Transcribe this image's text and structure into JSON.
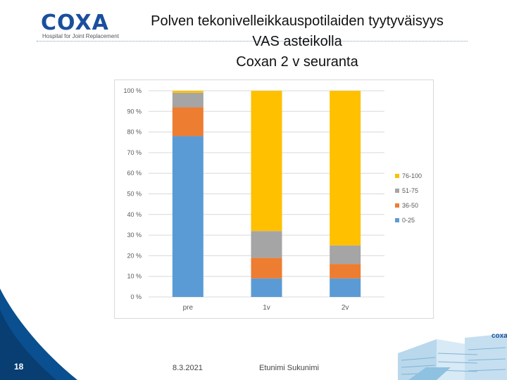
{
  "header": {
    "logo_text": "COXA",
    "logo_tagline": "Hospital for Joint Replacement",
    "title_lines": [
      "Polven tekonivelleikkauspotilaiden tyytyväisyys",
      "VAS asteikolla",
      "Coxan 2 v seuranta"
    ]
  },
  "footer": {
    "slide_number": "18",
    "date": "8.3.2021",
    "author": "Etunimi Sukunimi",
    "building_sign": "coxa"
  },
  "colors": {
    "brand_blue": "#1a4f9c",
    "brand_accent": "#29a8e0",
    "corner_blue": "#0a4f8f"
  },
  "chart_data": {
    "type": "bar",
    "stacked": true,
    "categories": [
      "pre",
      "1v",
      "2v"
    ],
    "series": [
      {
        "name": "0-25",
        "color": "#5b9bd5",
        "values": [
          78,
          9,
          9
        ]
      },
      {
        "name": "36-50",
        "color": "#ed7d31",
        "values": [
          14,
          10,
          7
        ]
      },
      {
        "name": "51-75",
        "color": "#a5a5a5",
        "values": [
          7,
          13,
          9
        ]
      },
      {
        "name": "76-100",
        "color": "#ffc000",
        "values": [
          1,
          68,
          75
        ]
      }
    ],
    "y_ticks": [
      "0 %",
      "10 %",
      "20 %",
      "30 %",
      "40 %",
      "50 %",
      "60 %",
      "70 %",
      "80 %",
      "90 %",
      "100 %"
    ],
    "ylim": [
      0,
      100
    ],
    "grid": true,
    "legend_position": "right",
    "legend_order": [
      "76-100",
      "51-75",
      "36-50",
      "0-25"
    ]
  }
}
